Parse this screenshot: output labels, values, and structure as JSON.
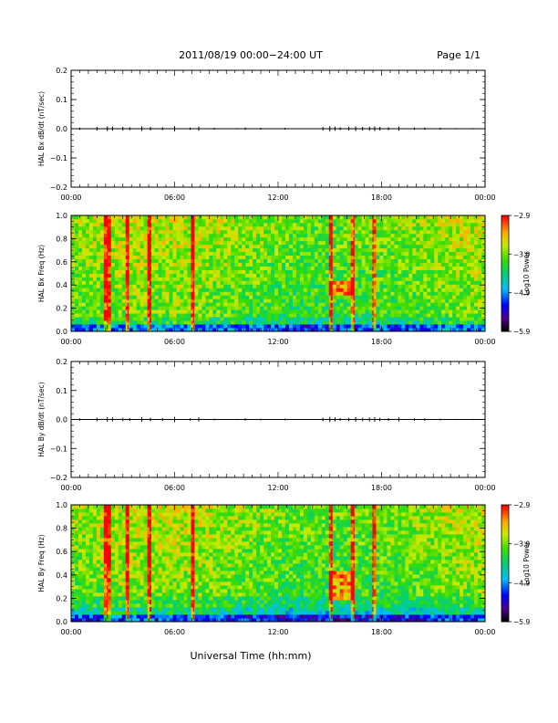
{
  "header": {
    "title": "2011/08/19  00:00−24:00 UT",
    "page": "Page 1/1"
  },
  "footer": {
    "xlabel": "Universal Time (hh:mm)"
  },
  "chart_data": [
    {
      "type": "line",
      "panel": "bx-dbdt",
      "ylabel": "HAL Bx dB/dt (nT/sec)",
      "ylim": [
        -0.2,
        0.2
      ],
      "yticks": [
        "0.2",
        "0.1",
        "0.0",
        "−0.1",
        "−0.2"
      ],
      "ytick_values": [
        0.2,
        0.1,
        0.0,
        -0.1,
        -0.2
      ],
      "xticks": [
        "00:00",
        "06:00",
        "12:00",
        "18:00",
        "00:00"
      ],
      "xlim_hours": [
        0,
        24
      ],
      "series": [
        {
          "x_hours": [
            0.5,
            1.5,
            2.1,
            2.4,
            3.0,
            3.4,
            4.1,
            4.6,
            5.3,
            6.0,
            6.9,
            7.4,
            8.3,
            9.6,
            10.1,
            11.0,
            12.4,
            14.6,
            15.0,
            15.3,
            15.6,
            16.1,
            16.5,
            16.9,
            17.3,
            17.6,
            17.9,
            18.4,
            19.0,
            19.9,
            20.5,
            21.4,
            22.3,
            23.3
          ],
          "values": [
            0.004,
            0.006,
            0.008,
            0.007,
            0.006,
            0.005,
            0.008,
            0.006,
            0.005,
            0.009,
            0.004,
            0.007,
            0.003,
            0.002,
            0.004,
            0.003,
            0.003,
            0.006,
            0.009,
            0.007,
            0.005,
            0.006,
            0.008,
            0.006,
            0.007,
            0.008,
            0.006,
            0.005,
            0.007,
            0.004,
            0.004,
            0.003,
            0.002,
            0.002
          ]
        }
      ]
    },
    {
      "type": "heatmap",
      "panel": "bx-spectrogram",
      "ylabel": "HAL Bx Freq (Hz)",
      "ylim": [
        0.0,
        1.0
      ],
      "yticks": [
        "1.0",
        "0.8",
        "0.6",
        "0.4",
        "0.2",
        "0.0"
      ],
      "ytick_values": [
        1.0,
        0.8,
        0.6,
        0.4,
        0.2,
        0.0
      ],
      "xticks": [
        "00:00",
        "06:00",
        "12:00",
        "18:00",
        "00:00"
      ],
      "xlim_hours": [
        0,
        24
      ],
      "colorbar_label": "Log10 Power",
      "colorbar_ticks": [
        "−2.9",
        "−3.9",
        "−4.9",
        "−5.9"
      ],
      "colorbar_range": [
        -5.9,
        -2.9
      ],
      "broadband_events_hours": [
        2.1,
        3.3,
        4.6,
        7.1,
        15.1,
        16.4,
        17.5
      ],
      "enhancement_hours": [
        15.0,
        16.5
      ],
      "enhancement_freq_hz": [
        0.3,
        0.45
      ]
    },
    {
      "type": "line",
      "panel": "by-dbdt",
      "ylabel": "HAL By dB/dt (nT/sec)",
      "ylim": [
        -0.2,
        0.2
      ],
      "yticks": [
        "0.2",
        "0.1",
        "0.0",
        "−0.1",
        "−0.2"
      ],
      "ytick_values": [
        0.2,
        0.1,
        0.0,
        -0.1,
        -0.2
      ],
      "xticks": [
        "00:00",
        "06:00",
        "12:00",
        "18:00",
        "00:00"
      ],
      "xlim_hours": [
        0,
        24
      ],
      "series": [
        {
          "x_hours": [
            0.5,
            1.5,
            2.1,
            2.4,
            3.0,
            3.4,
            4.1,
            4.6,
            5.3,
            6.0,
            6.9,
            7.4,
            8.3,
            9.6,
            10.1,
            11.0,
            12.4,
            14.6,
            15.0,
            15.3,
            15.6,
            16.1,
            16.5,
            16.9,
            17.3,
            17.6,
            17.9,
            18.4,
            19.0,
            19.9,
            20.5,
            21.4,
            22.3,
            23.3
          ],
          "values": [
            0.004,
            0.006,
            0.008,
            0.007,
            0.006,
            0.005,
            0.008,
            0.006,
            0.005,
            0.009,
            0.004,
            0.007,
            0.003,
            0.002,
            0.004,
            0.003,
            0.003,
            0.006,
            0.009,
            0.007,
            0.005,
            0.006,
            0.008,
            0.006,
            0.007,
            0.008,
            0.006,
            0.005,
            0.007,
            0.004,
            0.004,
            0.003,
            0.002,
            0.002
          ]
        }
      ]
    },
    {
      "type": "heatmap",
      "panel": "by-spectrogram",
      "ylabel": "HAL By Freq (Hz)",
      "ylim": [
        0.0,
        1.0
      ],
      "yticks": [
        "1.0",
        "0.8",
        "0.6",
        "0.4",
        "0.2",
        "0.0"
      ],
      "ytick_values": [
        1.0,
        0.8,
        0.6,
        0.4,
        0.2,
        0.0
      ],
      "xticks": [
        "00:00",
        "06:00",
        "12:00",
        "18:00",
        "00:00"
      ],
      "xlim_hours": [
        0,
        24
      ],
      "colorbar_label": "Log10 Power",
      "colorbar_ticks": [
        "−2.9",
        "−3.9",
        "−4.9",
        "−5.9"
      ],
      "colorbar_range": [
        -5.9,
        -2.9
      ],
      "broadband_events_hours": [
        2.1,
        3.3,
        4.6,
        7.1,
        15.1,
        16.4,
        17.5
      ],
      "enhancement_hours": [
        15.0,
        16.5
      ],
      "enhancement_freq_hz": [
        0.2,
        0.45
      ]
    }
  ]
}
